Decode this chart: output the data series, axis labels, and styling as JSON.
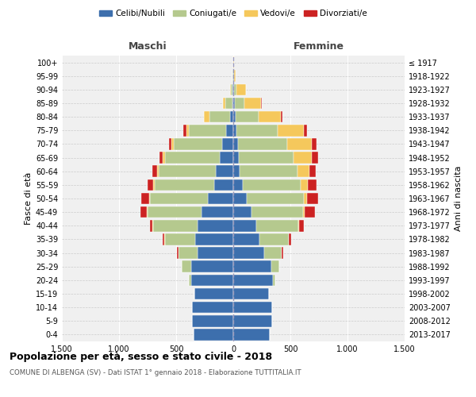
{
  "age_groups": [
    "0-4",
    "5-9",
    "10-14",
    "15-19",
    "20-24",
    "25-29",
    "30-34",
    "35-39",
    "40-44",
    "45-49",
    "50-54",
    "55-59",
    "60-64",
    "65-69",
    "70-74",
    "75-79",
    "80-84",
    "85-89",
    "90-94",
    "95-99",
    "100+"
  ],
  "birth_years": [
    "2013-2017",
    "2008-2012",
    "2003-2007",
    "1998-2002",
    "1993-1997",
    "1988-1992",
    "1983-1987",
    "1978-1982",
    "1973-1977",
    "1968-1972",
    "1963-1967",
    "1958-1962",
    "1953-1957",
    "1948-1952",
    "1943-1947",
    "1938-1942",
    "1933-1937",
    "1928-1932",
    "1923-1927",
    "1918-1922",
    "≤ 1917"
  ],
  "colors": {
    "celibe": "#3d6fad",
    "coniugato": "#b5c98e",
    "vedovo": "#f5c85c",
    "divorziato": "#cc2222"
  },
  "males": {
    "celibe": [
      350,
      360,
      360,
      340,
      370,
      370,
      310,
      330,
      310,
      280,
      220,
      170,
      150,
      120,
      100,
      60,
      25,
      10,
      5,
      3,
      2
    ],
    "coniugato": [
      0,
      0,
      2,
      3,
      20,
      80,
      170,
      270,
      390,
      470,
      510,
      520,
      500,
      480,
      420,
      330,
      180,
      60,
      15,
      2,
      0
    ],
    "vedovo": [
      0,
      0,
      0,
      0,
      0,
      0,
      2,
      3,
      5,
      5,
      5,
      10,
      15,
      20,
      20,
      20,
      50,
      20,
      5,
      0,
      0
    ],
    "divorziato": [
      0,
      0,
      0,
      0,
      0,
      3,
      10,
      15,
      25,
      55,
      70,
      50,
      40,
      25,
      25,
      25,
      5,
      0,
      0,
      0,
      0
    ]
  },
  "females": {
    "celibe": [
      320,
      340,
      340,
      310,
      350,
      330,
      270,
      230,
      200,
      160,
      120,
      80,
      55,
      50,
      40,
      30,
      20,
      15,
      8,
      5,
      2
    ],
    "coniugato": [
      0,
      0,
      2,
      2,
      15,
      70,
      155,
      255,
      370,
      450,
      500,
      510,
      510,
      480,
      430,
      360,
      200,
      80,
      20,
      2,
      0
    ],
    "vedovo": [
      0,
      0,
      0,
      0,
      0,
      0,
      2,
      3,
      5,
      15,
      25,
      60,
      100,
      160,
      220,
      230,
      200,
      150,
      80,
      15,
      3
    ],
    "divorziato": [
      0,
      0,
      0,
      0,
      0,
      2,
      8,
      20,
      40,
      90,
      100,
      80,
      60,
      50,
      40,
      25,
      10,
      5,
      0,
      0,
      0
    ]
  },
  "title": "Popolazione per età, sesso e stato civile - 2018",
  "subtitle": "COMUNE DI ALBENGA (SV) - Dati ISTAT 1° gennaio 2018 - Elaborazione TUTTITALIA.IT",
  "ylabel_left": "Fasce di età",
  "ylabel_right": "Anni di nascita",
  "xlabel_left": "Maschi",
  "xlabel_right": "Femmine",
  "xlim": 1500,
  "xticks": [
    -1500,
    -1000,
    -500,
    0,
    500,
    1000,
    1500
  ],
  "xticklabels": [
    "1.500",
    "1.000",
    "500",
    "0",
    "500",
    "1.000",
    "1.500"
  ],
  "legend_labels": [
    "Celibi/Nubili",
    "Coniugati/e",
    "Vedovi/e",
    "Divorziati/e"
  ],
  "bg_color": "#f0f0f0"
}
